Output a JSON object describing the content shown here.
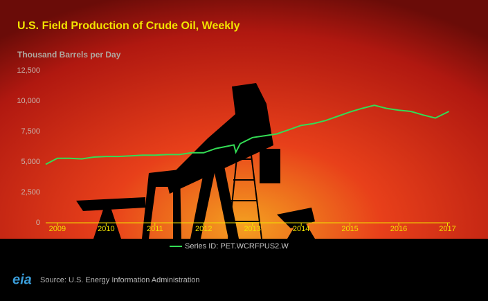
{
  "chart_data": {
    "type": "line",
    "title": "U.S. Field Production of Crude Oil, Weekly",
    "y_axis_label": "Thousand Barrels per Day",
    "x": [
      2008.76,
      2009.0,
      2009.25,
      2009.5,
      2009.75,
      2010.0,
      2010.25,
      2010.5,
      2010.75,
      2011.0,
      2011.25,
      2011.5,
      2011.75,
      2012.0,
      2012.25,
      2012.5,
      2012.62,
      2012.66,
      2012.75,
      2013.0,
      2013.25,
      2013.5,
      2013.75,
      2014.0,
      2014.25,
      2014.5,
      2014.75,
      2015.0,
      2015.25,
      2015.5,
      2015.75,
      2016.0,
      2016.25,
      2016.5,
      2016.75,
      2017.03
    ],
    "series": [
      {
        "name": "Series ID: PET.WCRFPUS2.W",
        "color": "#33dd55",
        "values": [
          4800,
          5300,
          5300,
          5250,
          5400,
          5450,
          5450,
          5500,
          5550,
          5550,
          5600,
          5600,
          5750,
          5750,
          6100,
          6300,
          6400,
          5800,
          6500,
          7000,
          7150,
          7300,
          7650,
          8000,
          8150,
          8400,
          8750,
          9100,
          9400,
          9650,
          9400,
          9250,
          9150,
          8850,
          8600,
          9150
        ]
      }
    ],
    "xlim": [
      2008.76,
      2017.05
    ],
    "xticks": [
      2009,
      2010,
      2011,
      2012,
      2013,
      2014,
      2015,
      2016,
      2017
    ],
    "ylim": [
      0,
      12500
    ],
    "yticks": [
      0,
      {
        "value": 2500,
        "label": "2,500"
      },
      {
        "value": 5000,
        "label": "5,000"
      },
      {
        "value": 7500,
        "label": "7,500"
      },
      {
        "value": 10000,
        "label": "10,000"
      },
      {
        "value": 12500,
        "label": "12,500"
      }
    ],
    "legend": "bottom",
    "logo": "eia",
    "source": "Source: U.S. Energy Information Administration"
  }
}
